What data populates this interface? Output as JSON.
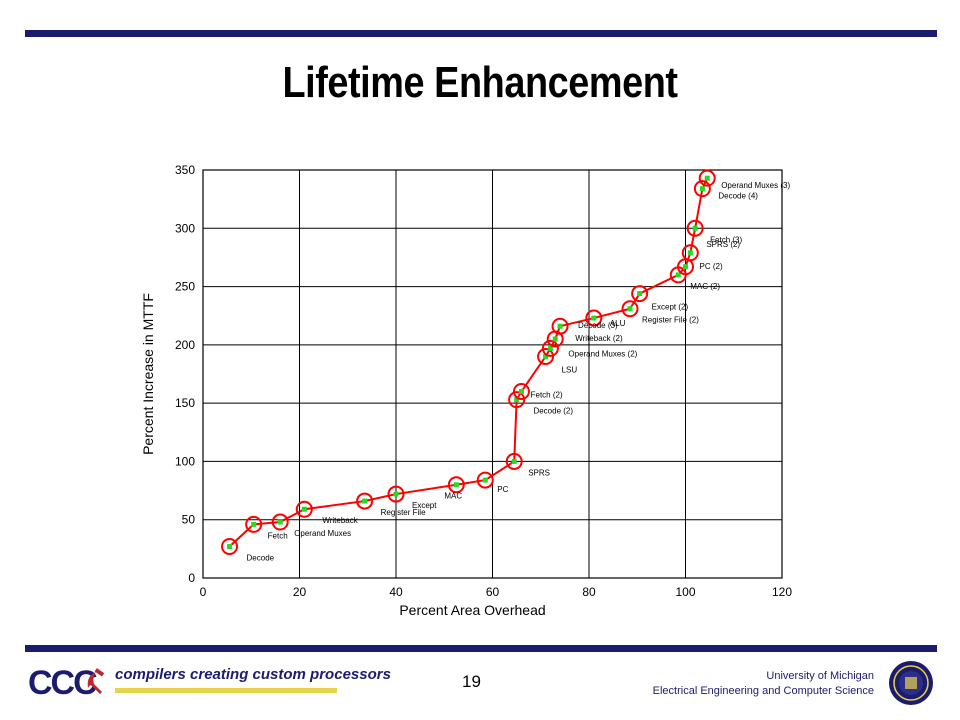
{
  "slide": {
    "title": "Lifetime Enhancement",
    "page_number": "19",
    "logo_text": "CCC",
    "tagline": "compilers creating custom processors",
    "affiliation_line1": "University of Michigan",
    "affiliation_line2": "Electrical Engineering and Computer Science"
  },
  "colors": {
    "rule": "#1c1c6e",
    "series_line": "#ff0000",
    "marker_fill": "#22dd22",
    "tagline_bar": "#e8d44a"
  },
  "chart_data": {
    "type": "line",
    "title": "",
    "xlabel": "Percent Area Overhead",
    "ylabel": "Percent Increase in MTTF",
    "xlim": [
      0,
      120
    ],
    "ylim": [
      0,
      350
    ],
    "xticks": [
      0,
      20,
      40,
      60,
      80,
      100,
      120
    ],
    "yticks": [
      0,
      50,
      100,
      150,
      200,
      250,
      300,
      350
    ],
    "grid": true,
    "points": [
      {
        "x": 5.5,
        "y": 27,
        "label": "Decode"
      },
      {
        "x": 10.5,
        "y": 46,
        "label": "Fetch"
      },
      {
        "x": 16,
        "y": 48,
        "label": "Operand Muxes"
      },
      {
        "x": 21,
        "y": 59,
        "label": "Writeback"
      },
      {
        "x": 33.5,
        "y": 66,
        "label": "Register File"
      },
      {
        "x": 40,
        "y": 72,
        "label": "Except"
      },
      {
        "x": 52.5,
        "y": 80,
        "label": "MAC"
      },
      {
        "x": 58.5,
        "y": 84,
        "label": "PC"
      },
      {
        "x": 64.5,
        "y": 100,
        "label": "SPRS"
      },
      {
        "x": 65,
        "y": 153,
        "label": "Fetch (2)"
      },
      {
        "x": 66,
        "y": 160,
        "label": "Decode (2)"
      },
      {
        "x": 71,
        "y": 190,
        "label": "LSU"
      },
      {
        "x": 72,
        "y": 197,
        "label": "Operand Muxes (2)"
      },
      {
        "x": 73,
        "y": 205,
        "label": "Writeback (2)"
      },
      {
        "x": 74,
        "y": 216,
        "label": "Decode (3)"
      },
      {
        "x": 81,
        "y": 223,
        "label": "ALU"
      },
      {
        "x": 88.5,
        "y": 231,
        "label": "Register File (2)"
      },
      {
        "x": 90.5,
        "y": 244,
        "label": "Except (2)"
      },
      {
        "x": 98.5,
        "y": 260,
        "label": "MAC (2)"
      },
      {
        "x": 100,
        "y": 267,
        "label": "PC (2)"
      },
      {
        "x": 101,
        "y": 279,
        "label": "SPRS (2)"
      },
      {
        "x": 102,
        "y": 300,
        "label": "Fetch (3)"
      },
      {
        "x": 103.5,
        "y": 334,
        "label": "Decode (4)"
      },
      {
        "x": 104.5,
        "y": 343,
        "label": "Operand Muxes (3)"
      }
    ]
  }
}
